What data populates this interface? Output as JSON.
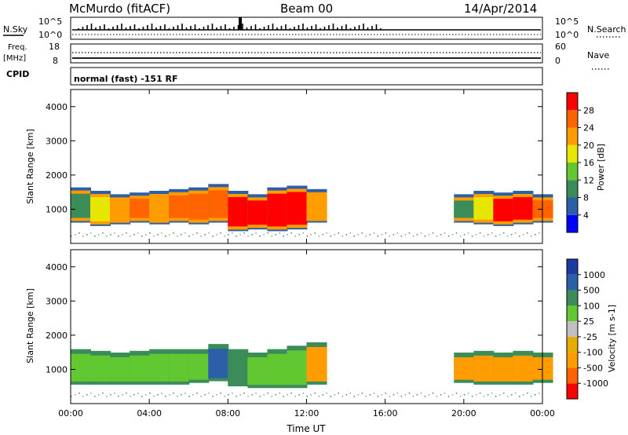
{
  "header": {
    "station": "McMurdo (fitACF)",
    "beam": "Beam 00",
    "date": "14/Apr/2014"
  },
  "top_panel": {
    "nsky_label": "N.Sky",
    "nsearch_label": "N.Search",
    "exp_ticks": [
      "10^5",
      "10^0"
    ],
    "freq_label": "Freq.",
    "freq_unit": "[MHz]",
    "freq_ticks": [
      "18",
      "8"
    ],
    "nave_label": "Nave",
    "nave_ticks": [
      "60",
      "0"
    ],
    "cpid_label": "CPID",
    "cpid_text": "normal (fast) -151 RF"
  },
  "colors": {
    "power_scale": [
      "#0000ff",
      "#2c5fa8",
      "#3c8c5a",
      "#62c832",
      "#e6e600",
      "#ff9c00",
      "#ff6400",
      "#ff0000"
    ],
    "velocity_scale": [
      "#ff0000",
      "#ff6400",
      "#ff9c00",
      "#e6aa00",
      "#c0c0c0",
      "#62c832",
      "#3c8c5a",
      "#2c5fa8",
      "#1e3ca0"
    ]
  },
  "chart_data": [
    {
      "type": "heatmap",
      "title": "Power",
      "ylabel": "Slant Range [km]",
      "xlabel": "Time UT",
      "ylim": [
        0,
        4500
      ],
      "yticks": [
        "1000",
        "2000",
        "3000",
        "4000"
      ],
      "xticks": [
        "00:00",
        "04:00",
        "08:00",
        "12:00",
        "16:00",
        "20:00",
        "00:00"
      ],
      "colorbar_label": "Power [dB]",
      "colorbar_ticks": [
        "4",
        "8",
        "12",
        "16",
        "20",
        "24",
        "28"
      ],
      "scatter_echoes": [
        {
          "t": 0.0,
          "r_min": 700,
          "r_max": 1500,
          "power": 8
        },
        {
          "t": 1.0,
          "r_min": 600,
          "r_max": 1400,
          "power": 16
        },
        {
          "t": 2.0,
          "r_min": 650,
          "r_max": 1300,
          "power": 20
        },
        {
          "t": 3.0,
          "r_min": 700,
          "r_max": 1350,
          "power": 24
        },
        {
          "t": 4.0,
          "r_min": 650,
          "r_max": 1400,
          "power": 20
        },
        {
          "t": 5.0,
          "r_min": 700,
          "r_max": 1450,
          "power": 24
        },
        {
          "t": 6.0,
          "r_min": 650,
          "r_max": 1500,
          "power": 24
        },
        {
          "t": 7.0,
          "r_min": 700,
          "r_max": 1600,
          "power": 24
        },
        {
          "t": 8.0,
          "r_min": 450,
          "r_max": 1400,
          "power": 28
        },
        {
          "t": 9.0,
          "r_min": 500,
          "r_max": 1300,
          "power": 28
        },
        {
          "t": 10.0,
          "r_min": 450,
          "r_max": 1500,
          "power": 28
        },
        {
          "t": 11.0,
          "r_min": 500,
          "r_max": 1550,
          "power": 28
        },
        {
          "t": 12.0,
          "r_min": 700,
          "r_max": 1450,
          "power": 20
        },
        {
          "t": 19.5,
          "r_min": 700,
          "r_max": 1300,
          "power": 8
        },
        {
          "t": 20.5,
          "r_min": 650,
          "r_max": 1400,
          "power": 16
        },
        {
          "t": 21.5,
          "r_min": 600,
          "r_max": 1350,
          "power": 28
        },
        {
          "t": 22.5,
          "r_min": 650,
          "r_max": 1400,
          "power": 28
        },
        {
          "t": 23.5,
          "r_min": 700,
          "r_max": 1300,
          "power": 24
        }
      ]
    },
    {
      "type": "heatmap",
      "title": "Velocity",
      "ylabel": "Slant Range [km]",
      "xlabel": "Time UT",
      "ylim": [
        0,
        4500
      ],
      "yticks": [
        "1000",
        "2000",
        "3000",
        "4000"
      ],
      "xticks": [
        "00:00",
        "04:00",
        "08:00",
        "12:00",
        "16:00",
        "20:00",
        "00:00"
      ],
      "colorbar_label": "Velocity [m s-1]",
      "colorbar_ticks": [
        "1000",
        "500",
        "100",
        "25",
        "-25",
        "-100",
        "-500",
        "-1000"
      ],
      "scatter_echoes": [
        {
          "t": 0.0,
          "r_min": 600,
          "r_max": 1500,
          "velocity": 100
        },
        {
          "t": 1.0,
          "r_min": 600,
          "r_max": 1450,
          "velocity": 100
        },
        {
          "t": 2.0,
          "r_min": 600,
          "r_max": 1400,
          "velocity": 100
        },
        {
          "t": 3.0,
          "r_min": 600,
          "r_max": 1450,
          "velocity": 100
        },
        {
          "t": 4.0,
          "r_min": 600,
          "r_max": 1500,
          "velocity": 100
        },
        {
          "t": 5.0,
          "r_min": 600,
          "r_max": 1500,
          "velocity": 100
        },
        {
          "t": 6.0,
          "r_min": 650,
          "r_max": 1500,
          "velocity": 100
        },
        {
          "t": 7.0,
          "r_min": 700,
          "r_max": 1650,
          "velocity": 1000
        },
        {
          "t": 8.0,
          "r_min": 550,
          "r_max": 1500,
          "velocity": 500
        },
        {
          "t": 9.0,
          "r_min": 500,
          "r_max": 1400,
          "velocity": 100
        },
        {
          "t": 10.0,
          "r_min": 500,
          "r_max": 1500,
          "velocity": 100
        },
        {
          "t": 11.0,
          "r_min": 500,
          "r_max": 1600,
          "velocity": 100
        },
        {
          "t": 12.0,
          "r_min": 600,
          "r_max": 1700,
          "velocity": -100
        },
        {
          "t": 19.5,
          "r_min": 650,
          "r_max": 1400,
          "velocity": -100
        },
        {
          "t": 20.5,
          "r_min": 600,
          "r_max": 1450,
          "velocity": -100
        },
        {
          "t": 21.5,
          "r_min": 600,
          "r_max": 1400,
          "velocity": -100
        },
        {
          "t": 22.5,
          "r_min": 600,
          "r_max": 1450,
          "velocity": -100
        },
        {
          "t": 23.5,
          "r_min": 650,
          "r_max": 1400,
          "velocity": -100
        }
      ]
    }
  ]
}
